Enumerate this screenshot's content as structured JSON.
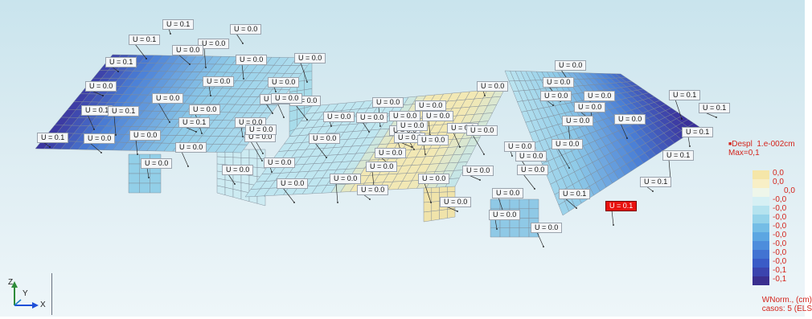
{
  "viewport": {
    "bg_top": "#c9e4ed",
    "bg_bottom": "#eef6f9"
  },
  "colors": {
    "mesh_line": "#7f8a96",
    "deep": "#3a2f9a",
    "blue": "#4a7fd6",
    "light_blue": "#8fcbe8",
    "cyan": "#bfe6f0",
    "cream": "#f2e8b4",
    "label_selected": "#e8120f",
    "legend_text": "#d4241c"
  },
  "labels": [
    {
      "text": "U = 0.1"
    },
    {
      "text": "U = 0.0"
    },
    {
      "text": "U = 0.1"
    },
    {
      "text": "U = 0.0"
    },
    {
      "text": "U = 0.1"
    },
    {
      "text": "U = 0.0"
    },
    {
      "text": "U = 0.0"
    },
    {
      "text": "U = 0.0"
    },
    {
      "text": "U = 0.0"
    },
    {
      "text": "U = 0.0"
    },
    {
      "text": "U = 0.1"
    },
    {
      "text": "U = 0.0"
    },
    {
      "text": "U = 0.0"
    },
    {
      "text": "U = 0.0"
    },
    {
      "text": "U = 0.0"
    },
    {
      "text": "U = 0.1"
    },
    {
      "text": "U = 0.1"
    },
    {
      "text": "U = 0.0"
    },
    {
      "text": "U = 0.0"
    },
    {
      "text": "U = 0.0"
    },
    {
      "text": "U = 0.1"
    },
    {
      "text": "U = 0.0"
    },
    {
      "text": "U = 0.0"
    },
    {
      "text": "U = 0.0"
    },
    {
      "text": "U = 0.0"
    },
    {
      "text": "U = 0.0"
    },
    {
      "text": "U = 0.0"
    },
    {
      "text": "U = 0.0"
    },
    {
      "text": "U = 0.0"
    },
    {
      "text": "U = 0.0"
    },
    {
      "text": "U = 0.0"
    },
    {
      "text": "U = 0.0"
    },
    {
      "text": "U = 0.0"
    },
    {
      "text": "U = 0.0"
    },
    {
      "text": "U = 0.0"
    },
    {
      "text": "U = 0.0"
    },
    {
      "text": "U = 0.0"
    },
    {
      "text": "U = 0.0"
    },
    {
      "text": "U = 0.0"
    },
    {
      "text": "U = 0.0"
    },
    {
      "text": "U = 0.0"
    },
    {
      "text": "U = 0.0"
    },
    {
      "text": "U = 0.0"
    },
    {
      "text": "U = 0.0"
    },
    {
      "text": "U = 0.0"
    },
    {
      "text": "U = 0.0"
    },
    {
      "text": "U = 0.0"
    },
    {
      "text": "U = 0.0"
    },
    {
      "text": "U = 0.0"
    },
    {
      "text": "U = 0.0"
    },
    {
      "text": "U = 0.0"
    },
    {
      "text": "U = 0.0"
    },
    {
      "text": "U = 0.0"
    },
    {
      "text": "U = 0.0"
    },
    {
      "text": "U = 0.0"
    },
    {
      "text": "U = 0.1"
    },
    {
      "text": "U = 0.1"
    },
    {
      "text": "U = 0.1"
    },
    {
      "text": "U = 0.0"
    },
    {
      "text": "U = 0.0"
    },
    {
      "text": "U = 0.0"
    },
    {
      "text": "U = 0.0"
    },
    {
      "text": "U = 0.0"
    },
    {
      "text": "U = 0.1"
    },
    {
      "text": "U = 0.1"
    },
    {
      "text": "U = 0.1"
    },
    {
      "text": "U = 0.1",
      "selected": true
    },
    {
      "text": "U = 0.0"
    },
    {
      "text": "U = 0.0"
    },
    {
      "text": "U = 0.0"
    },
    {
      "text": "U = 0.0"
    },
    {
      "text": "U = 0.0"
    }
  ],
  "legend": {
    "title_line1": "Despl  1.e-002cm",
    "title_line2": "Max=0,1",
    "items": [
      {
        "value": "0,0",
        "color": "#f5e6a8"
      },
      {
        "value": "0,0",
        "color": "#f8efc6"
      },
      {
        "value": "0,0",
        "color": "#eef6ea"
      },
      {
        "value": "-0,0",
        "color": "#d6f0f4"
      },
      {
        "value": "-0,0",
        "color": "#b5e3ef"
      },
      {
        "value": "-0,0",
        "color": "#95d3ea"
      },
      {
        "value": "-0,0",
        "color": "#74bde6"
      },
      {
        "value": "-0,0",
        "color": "#5ca6e2"
      },
      {
        "value": "-0,0",
        "color": "#4d8ddc"
      },
      {
        "value": "-0,0",
        "color": "#4273d2"
      },
      {
        "value": "-0,0",
        "color": "#3a5bc7"
      },
      {
        "value": "-0,1",
        "color": "#3b44ae"
      },
      {
        "value": "-0,1",
        "color": "#3a2f8f"
      }
    ],
    "footer_line1": "WNorm., (cm)",
    "footer_line2": "casos: 5 (ELS"
  },
  "axis": {
    "z": "Z",
    "y": "Y",
    "x": "X"
  }
}
